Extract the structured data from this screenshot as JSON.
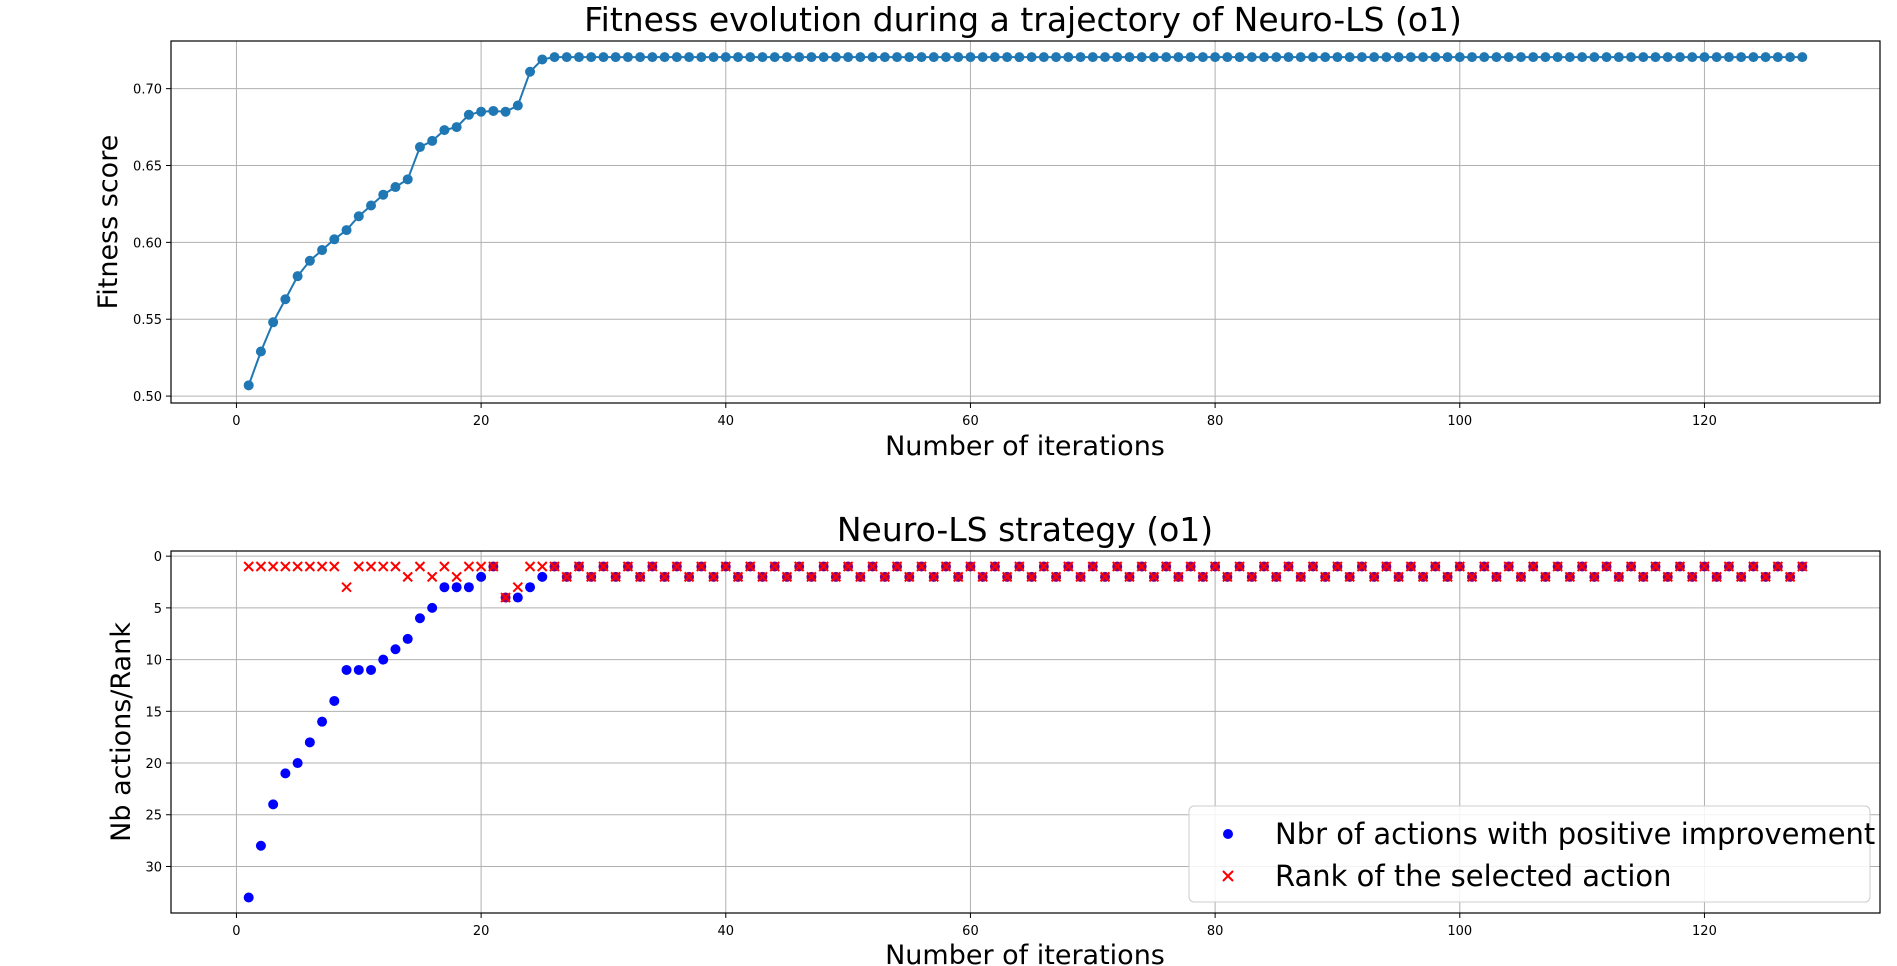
{
  "chart_data": [
    {
      "type": "line",
      "title": "Fitness evolution during a trajectory of Neuro-LS (o1)",
      "xlabel": "Number of iterations",
      "ylabel": "Fitness score",
      "xlim": [
        -5.35,
        134.35
      ],
      "ylim": [
        0.4955,
        0.731
      ],
      "xticks": [
        0,
        20,
        40,
        60,
        80,
        100,
        120
      ],
      "xtick_labels": [
        "0",
        "20",
        "40",
        "60",
        "80",
        "100",
        "120"
      ],
      "yticks": [
        0.5,
        0.55,
        0.6,
        0.65,
        0.7
      ],
      "ytick_labels": [
        "0.50",
        "0.55",
        "0.60",
        "0.65",
        "0.70"
      ],
      "grid": true,
      "color": "#1f77b4",
      "series": [
        {
          "name": "Fitness score",
          "x_start": 1,
          "x_step": 1,
          "plateau_value": 0.7205,
          "plateau_until": 128,
          "values": [
            0.507,
            0.529,
            0.548,
            0.563,
            0.578,
            0.588,
            0.595,
            0.602,
            0.608,
            0.617,
            0.624,
            0.631,
            0.636,
            0.641,
            0.662,
            0.666,
            0.673,
            0.675,
            0.683,
            0.685,
            0.6855,
            0.685,
            0.689,
            0.711,
            0.719
          ]
        }
      ]
    },
    {
      "type": "scatter",
      "title": "Neuro-LS strategy (o1)",
      "xlabel": "Number of iterations",
      "ylabel": "Nb actions/Rank",
      "xlim": [
        -5.35,
        134.35
      ],
      "ylim": [
        34.5,
        -0.5
      ],
      "y_inverted": true,
      "xticks": [
        0,
        20,
        40,
        60,
        80,
        100,
        120
      ],
      "xtick_labels": [
        "0",
        "20",
        "40",
        "60",
        "80",
        "100",
        "120"
      ],
      "yticks": [
        0,
        5,
        10,
        15,
        20,
        25,
        30
      ],
      "ytick_labels": [
        "0",
        "5",
        "10",
        "15",
        "20",
        "25",
        "30"
      ],
      "grid": true,
      "legend_position": "lower-right",
      "series": [
        {
          "name": "Nbr of actions with positive improvement",
          "marker": "circle",
          "color": "#0000ff",
          "x_start": 1,
          "values": [
            33,
            28,
            24,
            21,
            20,
            18,
            16,
            14,
            11,
            11,
            11,
            10,
            9,
            8,
            6,
            5,
            3,
            3,
            3,
            2,
            1,
            4,
            4,
            3,
            2
          ],
          "tail_pattern": [
            1,
            2
          ],
          "tail_until": 128
        },
        {
          "name": "Rank of the selected action",
          "marker": "x",
          "color": "#ff0000",
          "x_start": 1,
          "values": [
            1,
            1,
            1,
            1,
            1,
            1,
            1,
            1,
            3,
            1,
            1,
            1,
            1,
            2,
            1,
            2,
            1,
            2,
            1,
            1,
            1,
            4,
            3,
            1,
            1
          ],
          "tail_pattern": [
            1,
            2
          ],
          "tail_until": 128
        }
      ],
      "overlap_color": "#800080"
    }
  ]
}
